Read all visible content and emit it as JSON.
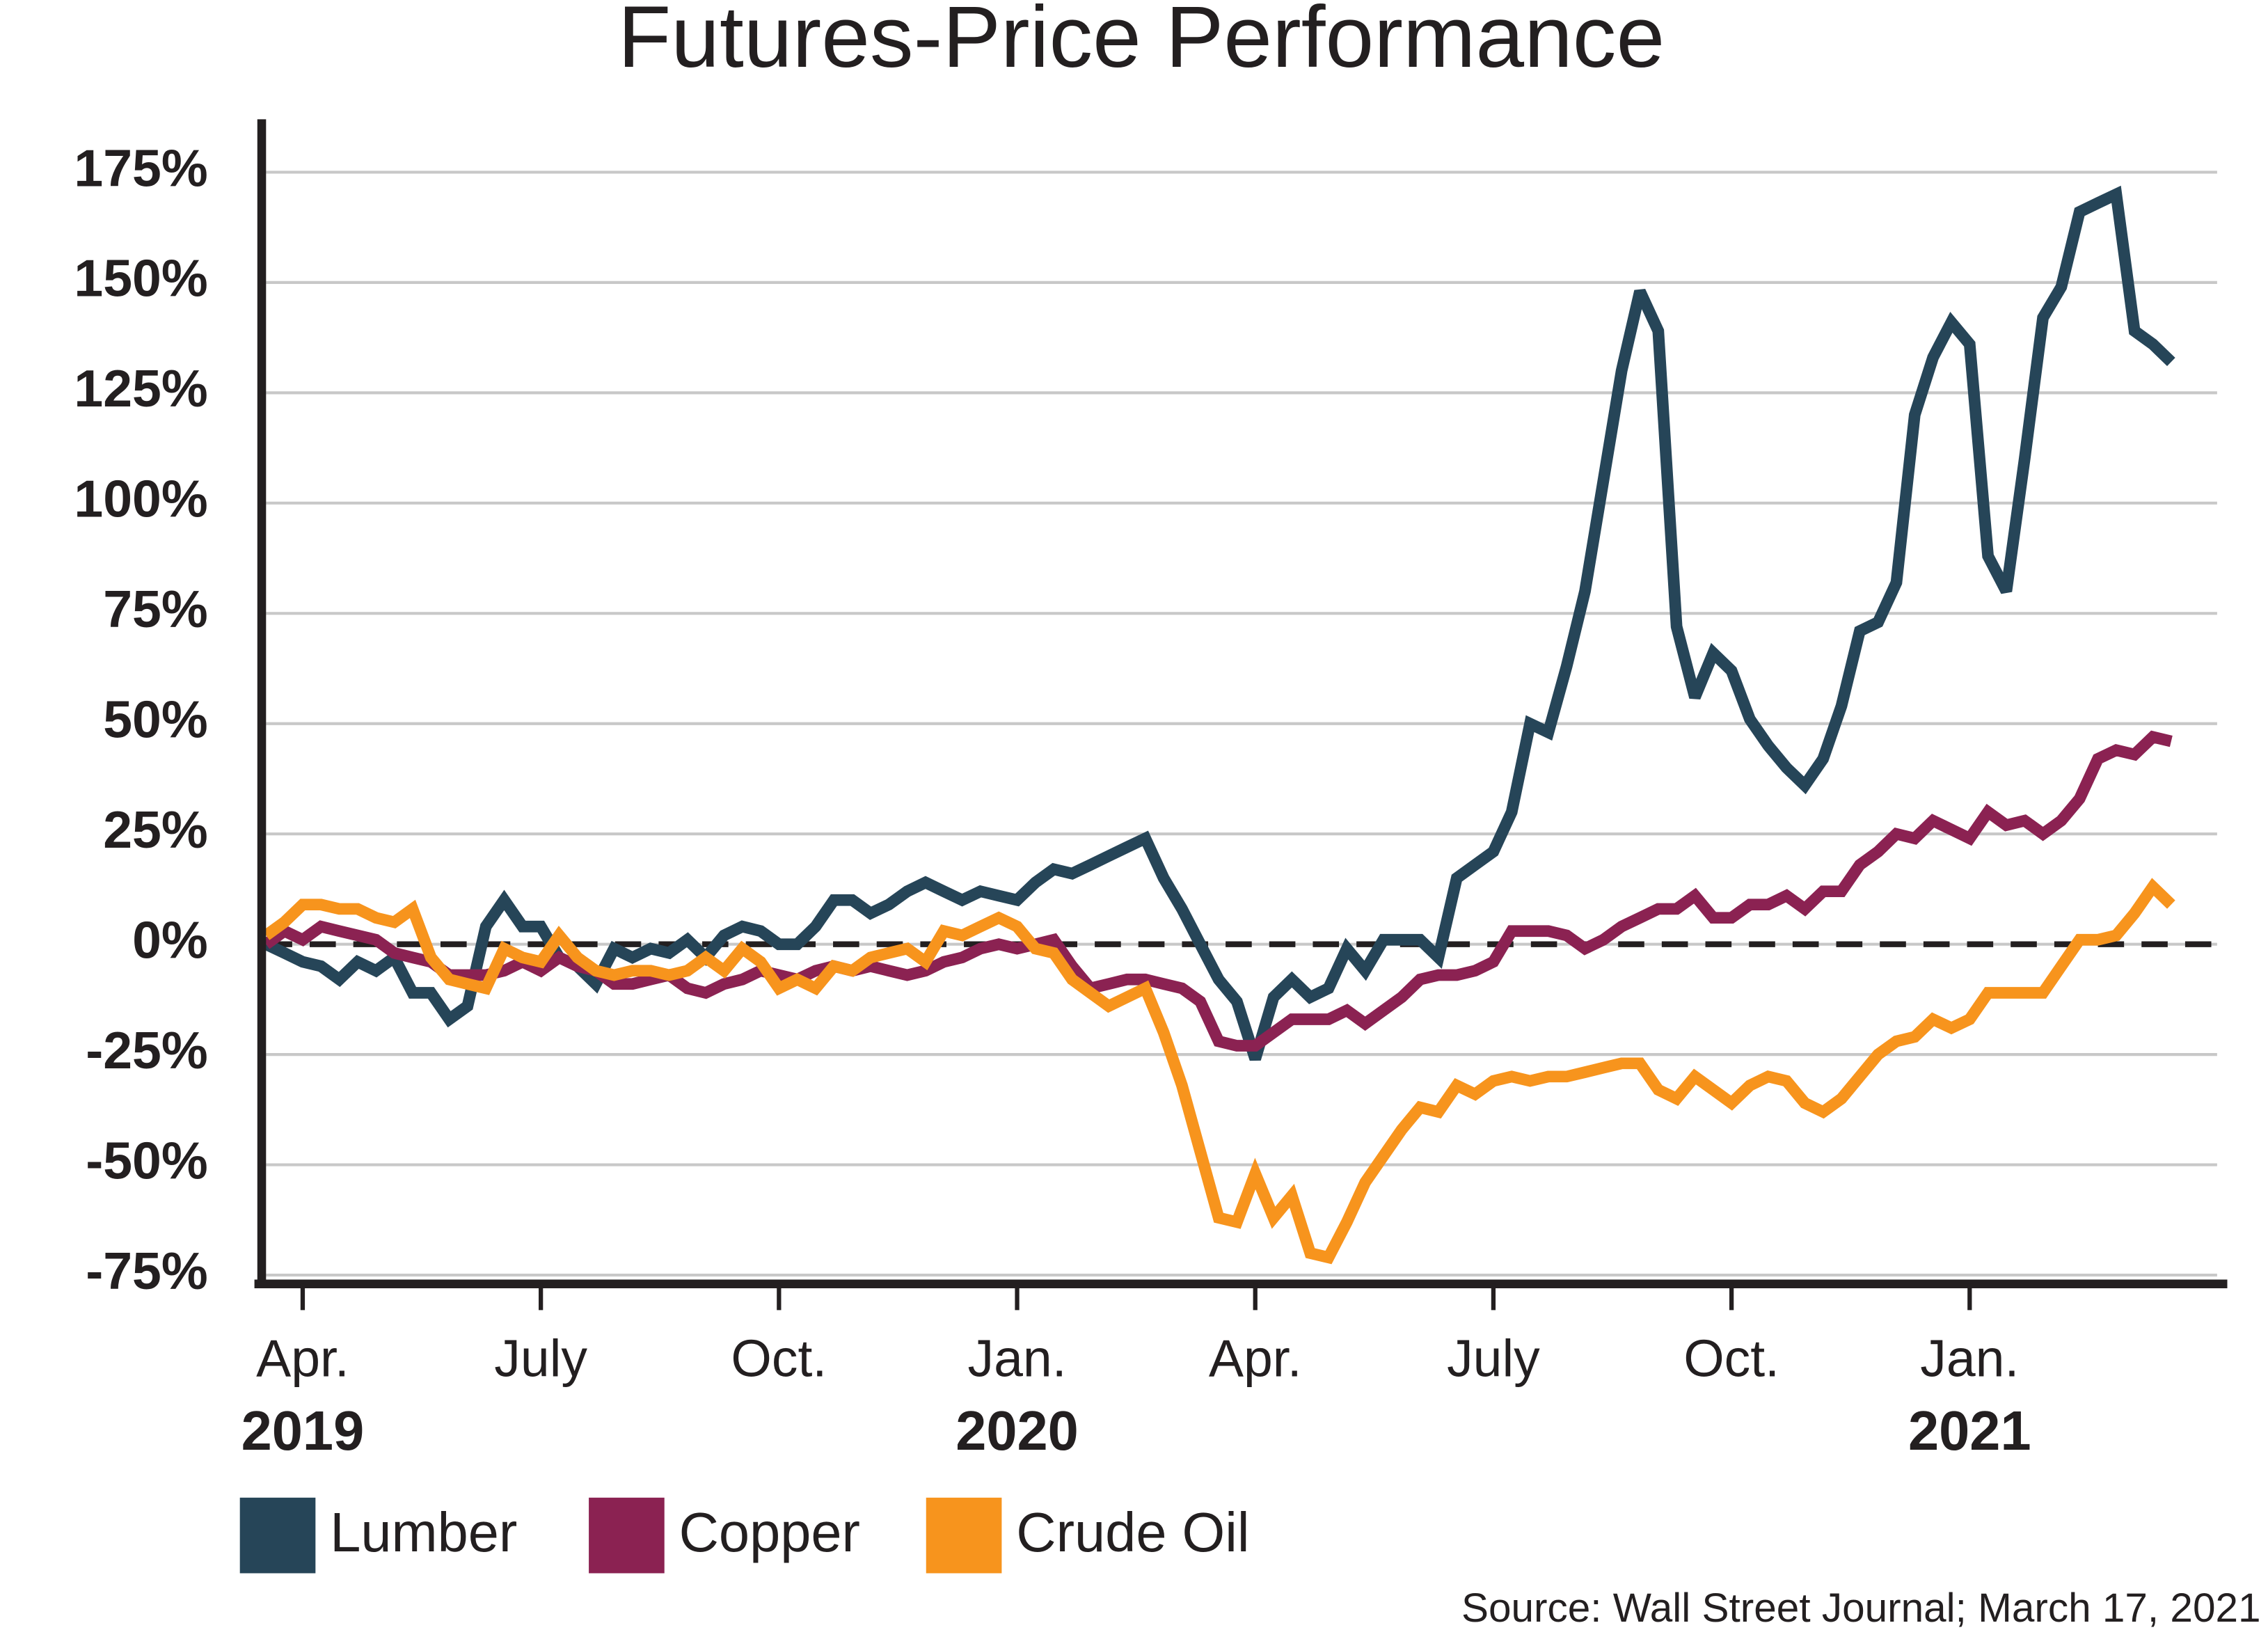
{
  "chart_data": {
    "type": "line",
    "title": "Futures-Price Performance",
    "source": "Source: Wall Street Journal; March 17, 2021",
    "categories": [
      null,
      null,
      "Apr.",
      null,
      null,
      null,
      null,
      null,
      null,
      null,
      null,
      null,
      null,
      null,
      null,
      "July",
      null,
      null,
      null,
      null,
      null,
      null,
      null,
      null,
      null,
      null,
      null,
      null,
      "Oct.",
      null,
      null,
      null,
      null,
      null,
      null,
      null,
      null,
      null,
      null,
      null,
      null,
      "Jan.",
      null,
      null,
      null,
      null,
      null,
      null,
      null,
      null,
      null,
      null,
      null,
      null,
      "Apr.",
      null,
      null,
      null,
      null,
      null,
      null,
      null,
      null,
      null,
      null,
      null,
      null,
      "July",
      null,
      null,
      null,
      null,
      null,
      null,
      null,
      null,
      null,
      null,
      null,
      null,
      "Oct.",
      null,
      null,
      null,
      null,
      null,
      null,
      null,
      null,
      null,
      null,
      null,
      null,
      "Jan.",
      null,
      null,
      null,
      null,
      null,
      null,
      null,
      null,
      null,
      null,
      null
    ],
    "category_years": [
      null,
      null,
      "2019",
      null,
      null,
      null,
      null,
      null,
      null,
      null,
      null,
      null,
      null,
      null,
      null,
      null,
      null,
      null,
      null,
      null,
      null,
      null,
      null,
      null,
      null,
      null,
      null,
      null,
      null,
      null,
      null,
      null,
      null,
      null,
      null,
      null,
      null,
      null,
      null,
      null,
      null,
      "2020",
      null,
      null,
      null,
      null,
      null,
      null,
      null,
      null,
      null,
      null,
      null,
      null,
      null,
      null,
      null,
      null,
      null,
      null,
      null,
      null,
      null,
      null,
      null,
      null,
      null,
      null,
      null,
      null,
      null,
      null,
      null,
      null,
      null,
      null,
      null,
      null,
      null,
      null,
      null,
      null,
      null,
      null,
      null,
      null,
      null,
      null,
      null,
      null,
      null,
      null,
      null,
      "2021",
      null,
      null,
      null,
      null,
      null,
      null,
      null,
      null,
      null,
      null,
      null
    ],
    "series": [
      {
        "name": "Lumber",
        "color": "#264558",
        "values": [
          0,
          -2,
          -4,
          -5,
          -8,
          -4,
          -6,
          -3,
          -11,
          -11,
          -17,
          -14,
          4,
          10,
          4,
          4,
          -3,
          -5,
          -9,
          -1,
          -3,
          -1,
          -2,
          1,
          -3,
          2,
          4,
          3,
          0,
          0,
          4,
          10,
          10,
          7,
          9,
          12,
          14,
          12,
          10,
          12,
          11,
          10,
          14,
          17,
          16,
          18,
          20,
          22,
          24,
          15,
          8,
          0,
          -8,
          -13,
          -26,
          -12,
          -8,
          -12,
          -10,
          -1,
          -6,
          1,
          1,
          1,
          -3,
          15,
          18,
          21,
          30,
          50,
          48,
          63,
          80,
          105,
          130,
          148,
          139,
          72,
          56,
          66,
          62,
          51,
          45,
          40,
          36,
          42,
          54,
          71,
          73,
          82,
          120,
          133,
          141,
          136,
          88,
          80,
          110,
          142,
          149,
          166,
          168,
          170,
          139,
          136,
          132
        ]
      },
      {
        "name": "Copper",
        "color": "#8b2252",
        "values": [
          0,
          3,
          1,
          4,
          3,
          2,
          1,
          -2,
          -3,
          -4,
          -7,
          -7,
          -7,
          -6,
          -4,
          -6,
          -3,
          -5,
          -6,
          -9,
          -9,
          -8,
          -7,
          -10,
          -11,
          -9,
          -8,
          -6,
          -7,
          -8,
          -6,
          -5,
          -6,
          -5,
          -6,
          -7,
          -6,
          -4,
          -3,
          -1,
          0,
          -1,
          0,
          1,
          -5,
          -10,
          -9,
          -8,
          -8,
          -9,
          -10,
          -13,
          -22,
          -23,
          -23,
          -20,
          -17,
          -17,
          -17,
          -15,
          -18,
          -15,
          -12,
          -8,
          -7,
          -7,
          -6,
          -4,
          3,
          3,
          3,
          2,
          -1,
          1,
          4,
          6,
          8,
          8,
          11,
          6,
          6,
          9,
          9,
          11,
          8,
          12,
          12,
          18,
          21,
          25,
          24,
          28,
          26,
          24,
          30,
          27,
          28,
          25,
          28,
          33,
          42,
          44,
          43,
          47,
          46
        ]
      },
      {
        "name": "Crude Oil",
        "color": "#f7941d",
        "values": [
          2,
          5,
          9,
          9,
          8,
          8,
          6,
          5,
          8,
          -3,
          -8,
          -9,
          -10,
          -1,
          -3,
          -4,
          2,
          -3,
          -6,
          -7,
          -6,
          -6,
          -7,
          -6,
          -3,
          -6,
          -1,
          -4,
          -10,
          -8,
          -10,
          -5,
          -6,
          -3,
          -2,
          -1,
          -4,
          3,
          2,
          4,
          6,
          4,
          -1,
          -2,
          -8,
          -11,
          -14,
          -12,
          -10,
          -20,
          -32,
          -47,
          -62,
          -63,
          -52,
          -62,
          -57,
          -70,
          -71,
          -63,
          -54,
          -48,
          -42,
          -37,
          -38,
          -32,
          -34,
          -31,
          -30,
          -31,
          -30,
          -30,
          -29,
          -28,
          -27,
          -27,
          -33,
          -35,
          -30,
          -33,
          -36,
          -32,
          -30,
          -31,
          -36,
          -38,
          -35,
          -30,
          -25,
          -22,
          -21,
          -17,
          -19,
          -17,
          -11,
          -11,
          -11,
          -11,
          -5,
          1,
          1,
          2,
          7,
          13,
          9
        ]
      }
    ],
    "ylim": [
      -77,
      187
    ],
    "yticks": [
      {
        "value": -75,
        "label": "-75%"
      },
      {
        "value": -50,
        "label": "-50%"
      },
      {
        "value": -25,
        "label": "-25%"
      },
      {
        "value": 0,
        "label": "0%"
      },
      {
        "value": 25,
        "label": "25%"
      },
      {
        "value": 50,
        "label": "50%"
      },
      {
        "value": 75,
        "label": "75%"
      },
      {
        "value": 100,
        "label": "100%"
      },
      {
        "value": 125,
        "label": "125%"
      },
      {
        "value": 150,
        "label": "150%"
      },
      {
        "value": 175,
        "label": "175%"
      }
    ],
    "grid": true,
    "zero_line": true,
    "legend": "bottom"
  }
}
